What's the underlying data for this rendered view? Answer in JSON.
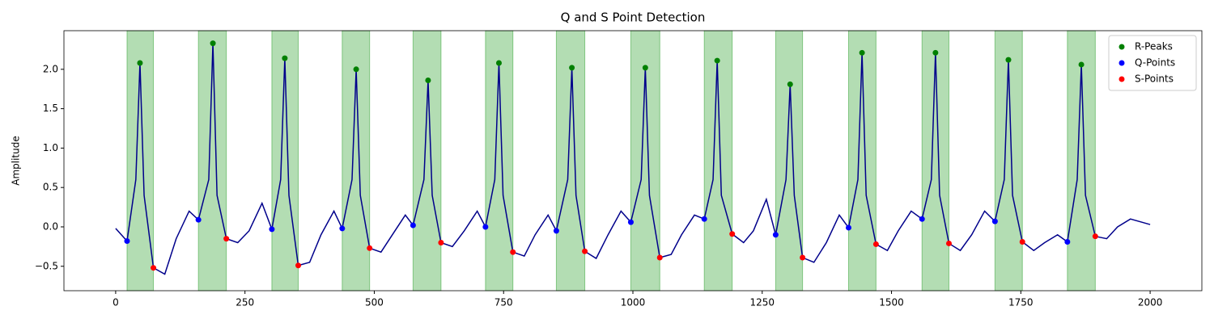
{
  "chart_data": {
    "type": "line",
    "title": "Q and S Point Detection",
    "y_label": "Amplitude",
    "xlim": [
      -100,
      2100
    ],
    "ylim": [
      -0.81,
      2.49
    ],
    "xticks": [
      0,
      250,
      500,
      750,
      1000,
      1250,
      1500,
      1750,
      2000
    ],
    "yticks": [
      {
        "value": -0.5,
        "label": "−0.5"
      },
      {
        "value": 0,
        "label": "0.0"
      },
      {
        "value": 0.5,
        "label": "0.5"
      },
      {
        "value": 1,
        "label": "1.0"
      },
      {
        "value": 1.5,
        "label": "1.5"
      },
      {
        "value": 2,
        "label": "2.0"
      }
    ],
    "legend": "upper right",
    "span_color": "#2ca02c",
    "series": [
      {
        "color": "#00008b",
        "kind": "line",
        "x": [
          0,
          22,
          39,
          47,
          55,
          73,
          95,
          117,
          142,
          160,
          180,
          188,
          196,
          214,
          236,
          258,
          283,
          302,
          319,
          327,
          335,
          353,
          375,
          397,
          422,
          438,
          457,
          465,
          473,
          491,
          513,
          535,
          560,
          575,
          596,
          604,
          612,
          629,
          651,
          674,
          699,
          715,
          733,
          741,
          749,
          768,
          790,
          811,
          836,
          852,
          874,
          882,
          890,
          907,
          929,
          952,
          977,
          996,
          1016,
          1024,
          1032,
          1052,
          1074,
          1094,
          1119,
          1138,
          1155,
          1163,
          1171,
          1192,
          1214,
          1233,
          1258,
          1276,
          1296,
          1304,
          1312,
          1328,
          1350,
          1374,
          1399,
          1417,
          1435,
          1443,
          1451,
          1470,
          1492,
          1513,
          1538,
          1559,
          1577,
          1585,
          1593,
          1611,
          1633,
          1655,
          1680,
          1700,
          1718,
          1726,
          1734,
          1753,
          1775,
          1796,
          1821,
          1840,
          1859,
          1867,
          1875,
          1894,
          1916,
          1937,
          1962,
          2000
        ],
        "values": [
          -0.02,
          -0.18,
          0.6,
          2.08,
          0.4,
          -0.52,
          -0.6,
          -0.15,
          0.2,
          0.09,
          0.6,
          2.33,
          0.4,
          -0.15,
          -0.2,
          -0.05,
          0.3,
          -0.03,
          0.6,
          2.14,
          0.4,
          -0.49,
          -0.45,
          -0.1,
          0.2,
          -0.02,
          0.6,
          2.0,
          0.4,
          -0.27,
          -0.32,
          -0.1,
          0.15,
          0.02,
          0.6,
          1.86,
          0.4,
          -0.2,
          -0.25,
          -0.05,
          0.2,
          0.0,
          0.6,
          2.08,
          0.4,
          -0.32,
          -0.37,
          -0.1,
          0.15,
          -0.05,
          0.6,
          2.02,
          0.4,
          -0.31,
          -0.4,
          -0.1,
          0.2,
          0.06,
          0.6,
          2.02,
          0.4,
          -0.39,
          -0.35,
          -0.1,
          0.15,
          0.1,
          0.6,
          2.11,
          0.4,
          -0.09,
          -0.2,
          -0.05,
          0.35,
          -0.1,
          0.6,
          1.81,
          0.4,
          -0.39,
          -0.45,
          -0.2,
          0.15,
          -0.01,
          0.6,
          2.21,
          0.4,
          -0.22,
          -0.3,
          -0.05,
          0.2,
          0.1,
          0.6,
          2.21,
          0.4,
          -0.21,
          -0.3,
          -0.1,
          0.2,
          0.07,
          0.6,
          2.12,
          0.4,
          -0.19,
          -0.3,
          -0.2,
          -0.1,
          -0.19,
          0.6,
          2.06,
          0.4,
          -0.12,
          -0.15,
          0.0,
          0.1,
          0.03
        ]
      },
      {
        "name": "R-Peaks",
        "color": "green",
        "kind": "scatter",
        "x": [
          47,
          188,
          327,
          465,
          604,
          741,
          882,
          1024,
          1163,
          1304,
          1443,
          1585,
          1726,
          1867
        ],
        "values": [
          2.08,
          2.33,
          2.14,
          2.0,
          1.86,
          2.08,
          2.02,
          2.02,
          2.11,
          1.81,
          2.21,
          2.21,
          2.12,
          2.06
        ]
      },
      {
        "name": "Q-Points",
        "color": "blue",
        "kind": "scatter",
        "x": [
          22,
          160,
          302,
          438,
          575,
          715,
          852,
          996,
          1138,
          1276,
          1417,
          1559,
          1700,
          1840
        ],
        "values": [
          -0.18,
          0.09,
          -0.03,
          -0.02,
          0.02,
          0.0,
          -0.05,
          0.06,
          0.1,
          -0.1,
          -0.01,
          0.1,
          0.07,
          -0.19
        ]
      },
      {
        "name": "S-Points",
        "color": "red",
        "kind": "scatter",
        "x": [
          73,
          214,
          353,
          491,
          629,
          768,
          907,
          1052,
          1192,
          1328,
          1470,
          1611,
          1753,
          1894
        ],
        "values": [
          -0.52,
          -0.15,
          -0.49,
          -0.27,
          -0.2,
          -0.32,
          -0.31,
          -0.39,
          -0.09,
          -0.39,
          -0.22,
          -0.21,
          -0.19,
          -0.12
        ]
      }
    ]
  }
}
